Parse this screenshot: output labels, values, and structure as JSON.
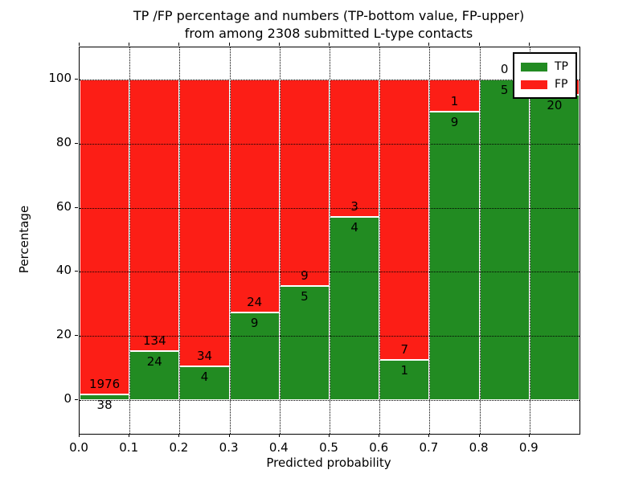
{
  "figure": {
    "title_line1": "TP /FP percentage and numbers (TP-bottom value, FP-upper)",
    "title_line2": "from among 2308 submitted L-type contacts",
    "xlabel": "Predicted probability",
    "ylabel": "Percentage"
  },
  "legend": {
    "items": [
      {
        "label": "TP",
        "color_key": "tp"
      },
      {
        "label": "FP",
        "color_key": "fp"
      }
    ]
  },
  "chart_data": {
    "type": "bar",
    "stacked": true,
    "title": "TP /FP percentage and numbers (TP-bottom value, FP-upper) from among 2308 submitted L-type contacts",
    "total_submitted": 2308,
    "xlabel": "Predicted probability",
    "ylabel": "Percentage",
    "xlim": [
      0.0,
      1.0
    ],
    "ylim": [
      -10.5,
      110
    ],
    "x_ticks": [
      "0.0",
      "0.1",
      "0.2",
      "0.3",
      "0.4",
      "0.5",
      "0.6",
      "0.7",
      "0.8",
      "0.9"
    ],
    "y_ticks": [
      0,
      20,
      40,
      60,
      80,
      100
    ],
    "grid": true,
    "legend_position": "upper right",
    "colors": {
      "tp": "#228b22",
      "fp": "#fc1e16"
    },
    "series_note": "each bar is normalized to 100%; green (TP) portion = tp/(tp+fp)",
    "bins": [
      {
        "range": [
          0.0,
          0.1
        ],
        "tp": 38,
        "fp": 1976,
        "fp_label_visible": true
      },
      {
        "range": [
          0.1,
          0.2
        ],
        "tp": 24,
        "fp": 134,
        "fp_label_visible": true
      },
      {
        "range": [
          0.2,
          0.3
        ],
        "tp": 4,
        "fp": 34,
        "fp_label_visible": true
      },
      {
        "range": [
          0.3,
          0.4
        ],
        "tp": 9,
        "fp": 24,
        "fp_label_visible": true
      },
      {
        "range": [
          0.4,
          0.5
        ],
        "tp": 5,
        "fp": 9,
        "fp_label_visible": true
      },
      {
        "range": [
          0.5,
          0.6
        ],
        "tp": 4,
        "fp": 3,
        "fp_label_visible": true
      },
      {
        "range": [
          0.6,
          0.7
        ],
        "tp": 1,
        "fp": 7,
        "fp_label_visible": true
      },
      {
        "range": [
          0.7,
          0.8
        ],
        "tp": 9,
        "fp": 1,
        "fp_label_visible": true
      },
      {
        "range": [
          0.8,
          0.9
        ],
        "tp": 5,
        "fp": 0,
        "fp_label_visible": true
      },
      {
        "range": [
          0.9,
          1.0
        ],
        "tp": 20,
        "fp": 1,
        "fp_label_visible": false
      }
    ]
  }
}
